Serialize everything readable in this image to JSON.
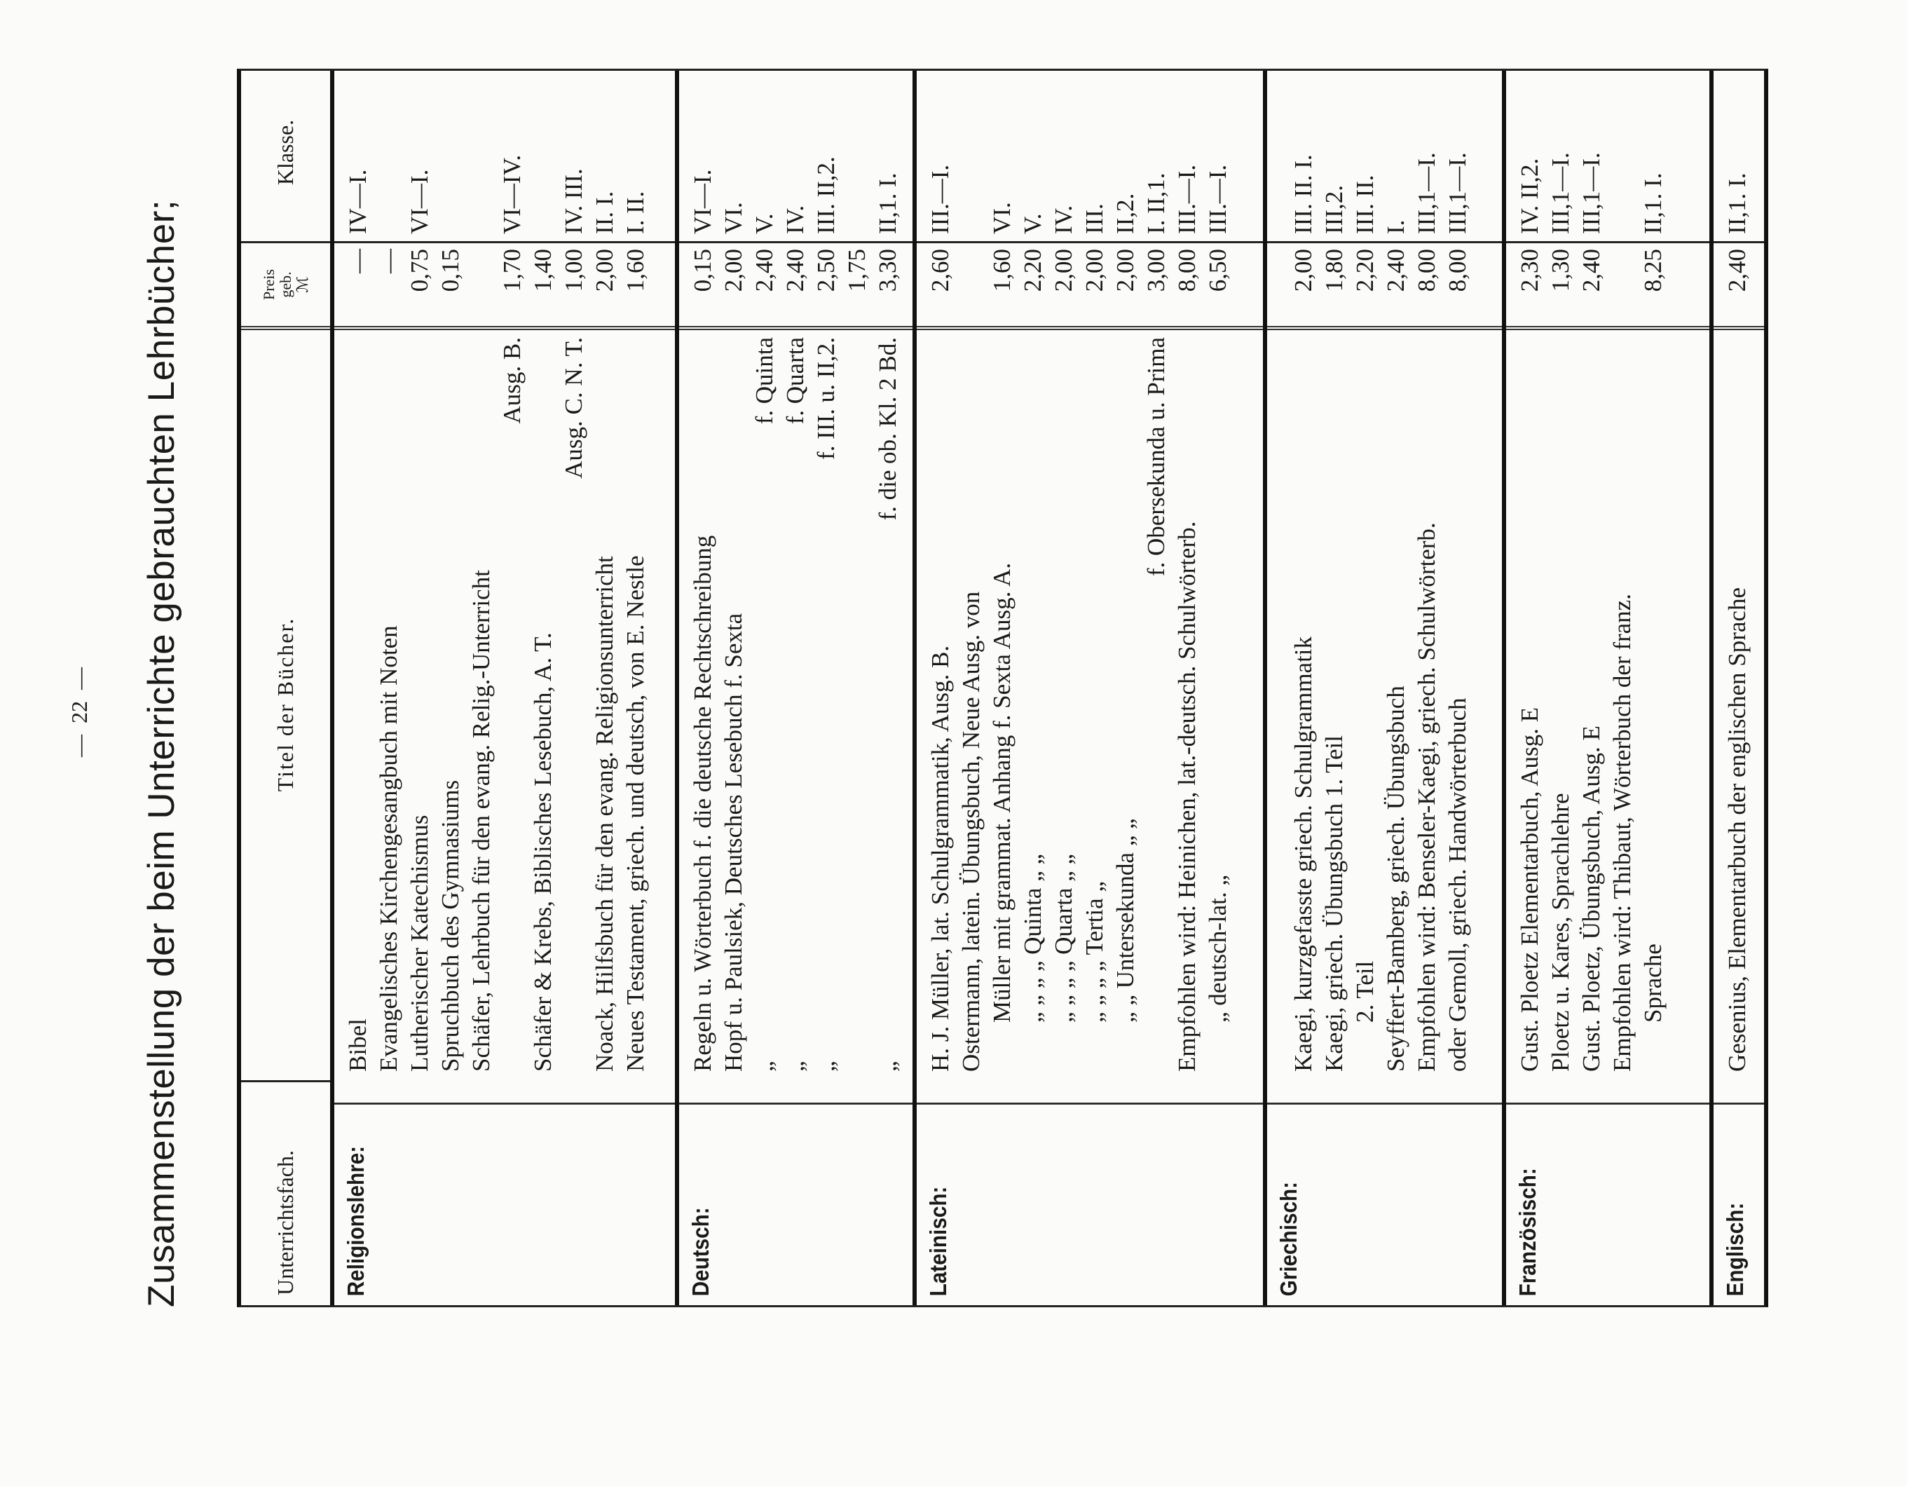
{
  "page_number": "—  22  —",
  "title": "Zusammenstellung der beim Unterrichte gebrauchten Lehrbücher;",
  "header": {
    "subject": "Unterrichtsfach.",
    "books": "Titel der Bücher.",
    "price_line1": "Preis",
    "price_line2": "geb.",
    "price_unit": "ℳ",
    "klasse": "Klasse."
  },
  "sections": [
    {
      "subject": "Religionslehre:",
      "lines": [
        {
          "l": "Bibel",
          "p": "—",
          "k": "IV—I."
        },
        {
          "l": "Evangelisches Kirchengesangbuch mit Noten",
          "p": "—"
        },
        {
          "l": "Lutherischer Katechismus",
          "p": "0,75",
          "k": "VI—I."
        },
        {
          "l": "Spruchbuch des Gymnasiums",
          "p": "0,15"
        },
        {
          "l": "Schäfer, Lehrbuch für den evang. Relig.-Unterricht"
        },
        {
          "r": "Ausg. B.",
          "p": "1,70",
          "k": "VI—IV."
        },
        {
          "l": "Schäfer & Krebs, Biblisches Lesebuch, A. T.",
          "p": "1,40"
        },
        {
          "r": "Ausg. C. N. T.",
          "p": "1,00",
          "k": "IV. III."
        },
        {
          "l": "Noack, Hilfsbuch für den evang. Religionsunterricht",
          "p": "2,00",
          "k": "II. I."
        },
        {
          "l": "Neues Testament, griech. und deutsch, von E. Nestle",
          "p": "1,60",
          "k": "I. II."
        }
      ]
    },
    {
      "subject": "Deutsch:",
      "lines": [
        {
          "l": "Regeln u. Wörterbuch f. die deutsche Rechtschreibung",
          "p": "0,15",
          "k": "VI—I."
        },
        {
          "l": "Hopf u. Paulsiek, Deutsches Lesebuch f. Sexta",
          "p": "2,00",
          "k": "VI."
        },
        {
          "l": "„",
          "r": "f. Quinta",
          "p": "2,40",
          "k": "V."
        },
        {
          "l": "„",
          "r": "f. Quarta",
          "p": "2,40",
          "k": "IV."
        },
        {
          "l": "„",
          "r": "f. III. u. II,2.",
          "p": "2,50",
          "k": "III. II,2."
        },
        {
          "p": "1,75"
        },
        {
          "l": "„",
          "r": "f. die ob. Kl. 2 Bd.",
          "p": "3,30",
          "k": "II,1. I."
        }
      ]
    },
    {
      "subject": "Lateinisch:",
      "lines": [
        {
          "l": "H. J. Müller, lat. Schulgrammatik, Ausg. B.",
          "p": "2,60",
          "k": "III.—I."
        },
        {
          "l": "Ostermann, latein. Übungsbuch, Neue Ausg. von"
        },
        {
          "i": "Müller mit grammat. Anhang f. Sexta  Ausg. A.",
          "p": "1,60",
          "k": "VI."
        },
        {
          "i": "„   „   „   „ Quinta   „   „",
          "p": "2,20",
          "k": "V."
        },
        {
          "i": "„   „   „   „ Quarta   „   „",
          "p": "2,00",
          "k": "IV."
        },
        {
          "i": "„   „   „   „ Tertia    „",
          "p": "2,00",
          "k": "III."
        },
        {
          "i": "„        „ Untersekunda „ „",
          "p": "2,00",
          "k": "II,2."
        },
        {
          "r": "f. Obersekunda u. Prima",
          "p": "3,00",
          "k": "I. II,1."
        },
        {
          "l": "Empfohlen wird: Heinichen, lat.-deutsch. Schulwörterb.",
          "p": "8,00",
          "k": "III.—I."
        },
        {
          "i": "„         deutsch-lat.         „",
          "p": "6,50",
          "k": "III.—I."
        }
      ]
    },
    {
      "subject": "Griechisch:",
      "lines": [
        {
          "l": "Kaegi, kurzgefasste griech. Schulgrammatik",
          "p": "2,00",
          "k": "III. II. I."
        },
        {
          "l": "Kaegi, griech. Übungsbuch 1. Teil",
          "p": "1,80",
          "k": "III,2."
        },
        {
          "i": "2. Teil",
          "p": "2,20",
          "k": "III. II."
        },
        {
          "l": "Seyffert-Bamberg, griech. Übungsbuch",
          "p": "2,40",
          "k": "I."
        },
        {
          "l": "Empfohlen wird: Benseler-Kaegi, griech. Schulwörterb.",
          "p": "8,00",
          "k": "III,1—I."
        },
        {
          "l": "oder Gemoll, griech. Handwörterbuch",
          "p": "8,00",
          "k": "III,1—I."
        }
      ]
    },
    {
      "subject": "Französisch:",
      "lines": [
        {
          "l": "Gust. Ploetz Elementarbuch, Ausg. E",
          "p": "2,30",
          "k": "IV. II,2."
        },
        {
          "l": "Ploetz u. Kares, Sprachlehre",
          "p": "1,30",
          "k": "III,1—I."
        },
        {
          "l": "Gust. Ploetz, Übungsbuch, Ausg. E",
          "p": "2,40",
          "k": "III,1—I."
        },
        {
          "l": "Empfohlen wird: Thibaut, Wörterbuch der franz."
        },
        {
          "i": "Sprache",
          "p": "8,25",
          "k": "II,1. I."
        }
      ]
    },
    {
      "subject": "Englisch:",
      "lines": [
        {
          "l": "Gesenius, Elementarbuch der englischen Sprache",
          "p": "2,40",
          "k": "II,1. I."
        }
      ]
    }
  ]
}
